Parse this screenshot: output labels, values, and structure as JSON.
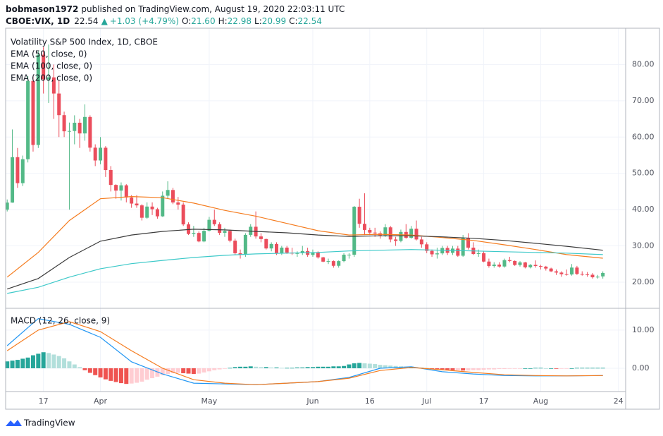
{
  "header": {
    "author": "bobmason1972",
    "published": "published on TradingView.com, August 19, 2020 22:03:11 UTC",
    "symbol": "CBOE:VIX, 1D",
    "price": "22.54",
    "arrow": "▲",
    "change": "+1.03 (+4.79%)",
    "o_label": "O:",
    "o": "21.60",
    "h_label": "H:",
    "h": "22.98",
    "l_label": "L:",
    "l": "20.99",
    "c_label": "C:",
    "c": "22.54"
  },
  "footer": {
    "logo": "TradingView"
  },
  "chart_data": [
    {
      "type": "candlestick",
      "title": "Volatility S&P 500 Index, 1D, CBOE",
      "up_color": "#53b987",
      "down_color": "#eb4d5c",
      "xlim": [
        -0.3,
        119.4
      ],
      "ylim": [
        12.8,
        90
      ],
      "yticks": [
        {
          "value": 20,
          "label": "20.00"
        },
        {
          "value": 30,
          "label": "30.00"
        },
        {
          "value": 40,
          "label": "40.00"
        },
        {
          "value": 50,
          "label": "50.00"
        },
        {
          "value": 60,
          "label": "60.00"
        },
        {
          "value": 70,
          "label": "70.00"
        },
        {
          "value": 80,
          "label": "80.00"
        }
      ],
      "grid": true,
      "candles": [
        [
          40.0,
          42.8,
          39.5,
          41.94
        ],
        [
          41.94,
          62.1,
          41.9,
          54.46
        ],
        [
          54.46,
          57.0,
          46.0,
          47.3
        ],
        [
          47.3,
          54.9,
          46.5,
          53.9
        ],
        [
          53.9,
          76.8,
          53.0,
          75.47
        ],
        [
          75.47,
          77.0,
          56.0,
          57.83
        ],
        [
          57.83,
          83.6,
          57.0,
          82.69
        ],
        [
          82.69,
          84.8,
          72.0,
          75.91
        ],
        [
          75.91,
          85.5,
          69.4,
          76.45
        ],
        [
          76.45,
          80.0,
          65.0,
          72.0
        ],
        [
          72.0,
          75.5,
          60.0,
          66.04
        ],
        [
          66.04,
          67.0,
          60.0,
          61.59
        ],
        [
          61.59,
          64.0,
          40.0,
          61.67
        ],
        [
          61.67,
          66.0,
          58.0,
          63.95
        ],
        [
          63.95,
          65.0,
          57.0,
          61.0
        ],
        [
          61.0,
          69.0,
          59.0,
          65.54
        ],
        [
          65.54,
          66.0,
          56.0,
          57.08
        ],
        [
          57.08,
          58.0,
          52.0,
          53.54
        ],
        [
          53.54,
          60.0,
          52.5,
          57.06
        ],
        [
          57.06,
          57.5,
          49.0,
          50.91
        ],
        [
          50.91,
          52.0,
          45.0,
          46.8
        ],
        [
          46.8,
          47.0,
          43.0,
          45.24
        ],
        [
          45.24,
          47.5,
          42.5,
          46.7
        ],
        [
          46.7,
          47.0,
          42.0,
          43.35
        ],
        [
          43.35,
          44.0,
          40.5,
          41.67
        ],
        [
          41.67,
          44.0,
          40.5,
          41.17
        ],
        [
          41.17,
          41.5,
          37.0,
          37.76
        ],
        [
          37.76,
          42.0,
          37.5,
          40.84
        ],
        [
          40.84,
          42.0,
          38.5,
          40.11
        ],
        [
          40.11,
          40.5,
          37.5,
          38.15
        ],
        [
          38.15,
          45.0,
          38.0,
          43.83
        ],
        [
          43.83,
          47.8,
          43.0,
          45.41
        ],
        [
          45.41,
          46.0,
          41.5,
          41.98
        ],
        [
          41.98,
          43.5,
          40.0,
          41.38
        ],
        [
          41.38,
          42.0,
          35.5,
          35.93
        ],
        [
          35.93,
          36.5,
          33.0,
          33.29
        ],
        [
          33.29,
          35.5,
          32.5,
          33.57
        ],
        [
          33.57,
          34.0,
          31.0,
          31.23
        ],
        [
          31.23,
          35.0,
          31.0,
          34.15
        ],
        [
          34.15,
          38.0,
          34.0,
          37.19
        ],
        [
          37.19,
          40.0,
          35.5,
          35.97
        ],
        [
          35.97,
          36.5,
          33.0,
          33.61
        ],
        [
          33.61,
          35.0,
          32.5,
          34.12
        ],
        [
          34.12,
          34.5,
          31.0,
          31.44
        ],
        [
          31.44,
          32.0,
          27.5,
          27.98
        ],
        [
          27.98,
          29.0,
          26.5,
          27.57
        ],
        [
          27.57,
          33.5,
          27.0,
          33.04
        ],
        [
          33.04,
          36.0,
          32.5,
          35.28
        ],
        [
          35.28,
          39.5,
          32.0,
          32.61
        ],
        [
          32.61,
          33.5,
          31.0,
          31.89
        ],
        [
          31.89,
          32.0,
          29.0,
          29.3
        ],
        [
          29.3,
          31.0,
          28.5,
          30.53
        ],
        [
          30.53,
          31.0,
          27.5,
          27.99
        ],
        [
          27.99,
          30.0,
          27.5,
          29.53
        ],
        [
          29.53,
          30.0,
          27.8,
          28.16
        ],
        [
          28.16,
          29.5,
          27.5,
          27.91
        ],
        [
          27.91,
          28.5,
          27.0,
          28.01
        ],
        [
          28.01,
          30.0,
          27.5,
          28.59
        ],
        [
          28.59,
          29.5,
          27.0,
          27.51
        ],
        [
          27.51,
          29.0,
          27.0,
          28.23
        ],
        [
          28.23,
          28.5,
          26.5,
          26.84
        ],
        [
          26.84,
          27.0,
          25.5,
          25.66
        ],
        [
          25.66,
          26.5,
          25.0,
          25.81
        ],
        [
          25.81,
          26.0,
          24.0,
          24.52
        ],
        [
          24.52,
          26.0,
          24.0,
          25.81
        ],
        [
          25.81,
          28.0,
          25.5,
          27.57
        ],
        [
          27.57,
          28.0,
          26.5,
          27.57
        ],
        [
          27.57,
          41.0,
          27.0,
          40.79
        ],
        [
          40.79,
          43.0,
          35.0,
          36.09
        ],
        [
          36.09,
          44.5,
          33.0,
          34.4
        ],
        [
          34.4,
          35.0,
          33.0,
          33.67
        ],
        [
          33.67,
          35.0,
          32.5,
          33.47
        ],
        [
          33.47,
          34.0,
          32.0,
          32.94
        ],
        [
          32.94,
          36.0,
          32.5,
          35.12
        ],
        [
          35.12,
          35.5,
          31.0,
          31.77
        ],
        [
          31.77,
          32.5,
          30.0,
          31.37
        ],
        [
          31.37,
          34.5,
          31.0,
          33.84
        ],
        [
          33.84,
          36.0,
          32.0,
          32.22
        ],
        [
          32.22,
          35.5,
          32.0,
          34.73
        ],
        [
          34.73,
          37.0,
          31.5,
          31.78
        ],
        [
          31.78,
          32.5,
          29.5,
          30.43
        ],
        [
          30.43,
          31.0,
          28.0,
          28.62
        ],
        [
          28.62,
          29.0,
          27.0,
          27.68
        ],
        [
          27.68,
          29.5,
          26.5,
          27.94
        ],
        [
          27.94,
          30.0,
          27.5,
          29.43
        ],
        [
          29.43,
          30.0,
          27.5,
          28.08
        ],
        [
          28.08,
          30.0,
          27.5,
          29.26
        ],
        [
          29.26,
          30.0,
          27.0,
          27.29
        ],
        [
          27.29,
          33.0,
          27.0,
          32.19
        ],
        [
          32.19,
          33.5,
          29.0,
          29.52
        ],
        [
          29.52,
          31.0,
          27.5,
          27.76
        ],
        [
          27.76,
          29.0,
          27.0,
          28.0
        ],
        [
          28.0,
          28.5,
          25.5,
          25.68
        ],
        [
          25.68,
          26.5,
          24.0,
          24.46
        ],
        [
          24.46,
          25.5,
          24.0,
          24.84
        ],
        [
          24.84,
          25.5,
          24.0,
          24.32
        ],
        [
          24.32,
          26.5,
          24.0,
          26.08
        ],
        [
          26.08,
          27.0,
          25.5,
          25.84
        ],
        [
          25.84,
          26.0,
          24.5,
          24.74
        ],
        [
          24.74,
          25.8,
          24.3,
          25.44
        ],
        [
          25.44,
          25.6,
          23.8,
          24.1
        ],
        [
          24.1,
          25.0,
          23.8,
          24.76
        ],
        [
          24.76,
          26.0,
          24.0,
          24.46
        ],
        [
          24.46,
          24.8,
          23.5,
          24.28
        ],
        [
          24.28,
          24.5,
          23.2,
          23.76
        ],
        [
          23.76,
          24.0,
          22.8,
          22.99
        ],
        [
          22.99,
          23.5,
          22.0,
          22.65
        ],
        [
          22.65,
          23.0,
          21.5,
          22.21
        ],
        [
          22.21,
          23.5,
          21.8,
          22.13
        ],
        [
          22.13,
          25.0,
          21.8,
          24.03
        ],
        [
          24.03,
          24.5,
          22.0,
          22.28
        ],
        [
          22.28,
          23.0,
          21.8,
          22.13
        ],
        [
          22.13,
          22.8,
          21.5,
          22.05
        ],
        [
          22.05,
          22.5,
          21.0,
          21.35
        ],
        [
          21.35,
          22.0,
          21.0,
          21.51
        ],
        [
          21.6,
          22.98,
          20.99,
          22.54
        ]
      ],
      "series": [
        {
          "name": "EMA (50, close, 0)",
          "color": "#f57c1f",
          "x": [
            0,
            6,
            12,
            18,
            24,
            30,
            36,
            42,
            48,
            54,
            60,
            66,
            72,
            78,
            84,
            90,
            96,
            102,
            108,
            115
          ],
          "values": [
            21.4,
            28.2,
            37,
            43,
            43.6,
            43.3,
            41.8,
            39.8,
            38.2,
            36.2,
            34.2,
            33,
            33.2,
            33,
            32.3,
            31.5,
            30.3,
            29,
            27.6,
            26.6
          ]
        },
        {
          "name": "EMA (100, close, 0)",
          "color": "#3b3b3b",
          "x": [
            0,
            6,
            12,
            18,
            24,
            30,
            36,
            42,
            48,
            54,
            60,
            66,
            72,
            78,
            84,
            90,
            96,
            102,
            108,
            115
          ],
          "values": [
            18.1,
            21,
            26.8,
            31.3,
            33,
            34,
            34.6,
            34.4,
            34,
            33.6,
            33,
            32.6,
            32.8,
            32.8,
            32.5,
            32.1,
            31.5,
            30.7,
            29.9,
            28.8
          ]
        },
        {
          "name": "EMA (200, close, 0)",
          "color": "#3dc9c9",
          "x": [
            0,
            6,
            12,
            18,
            24,
            30,
            36,
            42,
            48,
            54,
            60,
            66,
            72,
            78,
            84,
            90,
            96,
            102,
            108,
            115
          ],
          "values": [
            16.9,
            18.6,
            21.4,
            23.7,
            25.1,
            26,
            26.8,
            27.4,
            27.8,
            28,
            28.2,
            28.6,
            28.8,
            29,
            28.8,
            28.6,
            28.4,
            28.2,
            28,
            27.6
          ]
        }
      ]
    },
    {
      "type": "macd",
      "title": "MACD (12, 26, close, 9)",
      "xlim": [
        -0.3,
        119.4
      ],
      "ylim": [
        -6.1,
        15.7
      ],
      "yticks": [
        {
          "value": 0,
          "label": "0.00"
        },
        {
          "value": 10,
          "label": "10.00"
        }
      ],
      "xticks": [
        {
          "value": 7,
          "label": "17"
        },
        {
          "value": 18,
          "label": "Apr"
        },
        {
          "value": 39,
          "label": "May"
        },
        {
          "value": 59,
          "label": "Jun"
        },
        {
          "value": 70,
          "label": "16"
        },
        {
          "value": 81,
          "label": "Jul"
        },
        {
          "value": 92,
          "label": "17"
        },
        {
          "value": 103,
          "label": "Aug"
        },
        {
          "value": 118,
          "label": "24"
        }
      ],
      "histogram_colors": [
        "#26a69a",
        "#b2dfdb",
        "#ffcdd2",
        "#ef5350"
      ],
      "histogram": [
        1.8,
        2.0,
        2.2,
        2.5,
        2.8,
        3.4,
        3.8,
        4.2,
        4.0,
        3.6,
        3.2,
        2.6,
        1.8,
        1.0,
        0.3,
        -0.5,
        -1.2,
        -1.8,
        -2.4,
        -2.9,
        -3.3,
        -3.6,
        -3.9,
        -4.1,
        -4.0,
        -3.8,
        -3.5,
        -3.0,
        -2.6,
        -2.2,
        -1.8,
        -1.5,
        -1.3,
        -1.2,
        -1.3,
        -1.4,
        -1.5,
        -1.4,
        -1.1,
        -0.8,
        -0.5,
        -0.3,
        -0.1,
        0.1,
        0.3,
        0.4,
        0.4,
        0.5,
        0.4,
        0.3,
        0.3,
        0.2,
        0.2,
        0.1,
        0.1,
        0.1,
        0.2,
        0.2,
        0.3,
        0.3,
        0.4,
        0.4,
        0.4,
        0.5,
        0.5,
        0.6,
        1.0,
        1.3,
        1.4,
        1.3,
        1.2,
        1.1,
        0.9,
        0.8,
        0.7,
        0.6,
        0.5,
        0.4,
        0.4,
        0.3,
        0.2,
        0.1,
        -0.1,
        -0.2,
        -0.3,
        -0.4,
        -0.5,
        -0.5,
        -0.6,
        -0.6,
        -0.5,
        -0.5,
        -0.4,
        -0.3,
        -0.3,
        -0.2,
        -0.2,
        -0.1,
        -0.1,
        -0.1,
        0,
        0,
        0.1,
        0.1,
        0,
        0,
        -0.1,
        -0.1,
        -0.1,
        0,
        0.1,
        0.1,
        0.1,
        0.1,
        0.1,
        0.1
      ],
      "series": [
        {
          "name": "MACD",
          "color": "#2196f3",
          "x": [
            0,
            6,
            12,
            18,
            24,
            30,
            36,
            42,
            48,
            54,
            60,
            66,
            72,
            78,
            84,
            90,
            96,
            102,
            108,
            115
          ],
          "values": [
            5.9,
            13,
            11.5,
            8.1,
            1.7,
            -1.5,
            -3.9,
            -4.1,
            -4.3,
            -3.9,
            -3.5,
            -2.4,
            0,
            0.4,
            -0.9,
            -1.5,
            -1.9,
            -2.0,
            -2,
            -1.9
          ]
        },
        {
          "name": "Signal",
          "color": "#f57c1f",
          "x": [
            0,
            6,
            12,
            18,
            24,
            30,
            36,
            42,
            48,
            54,
            60,
            66,
            72,
            78,
            84,
            90,
            96,
            102,
            108,
            115
          ],
          "values": [
            4.6,
            10,
            12.2,
            9.6,
            4.6,
            0,
            -3,
            -3.9,
            -4.3,
            -3.9,
            -3.5,
            -2.6,
            -0.6,
            0.2,
            -0.4,
            -1.1,
            -1.7,
            -1.9,
            -2.0,
            -1.9
          ]
        }
      ]
    }
  ]
}
